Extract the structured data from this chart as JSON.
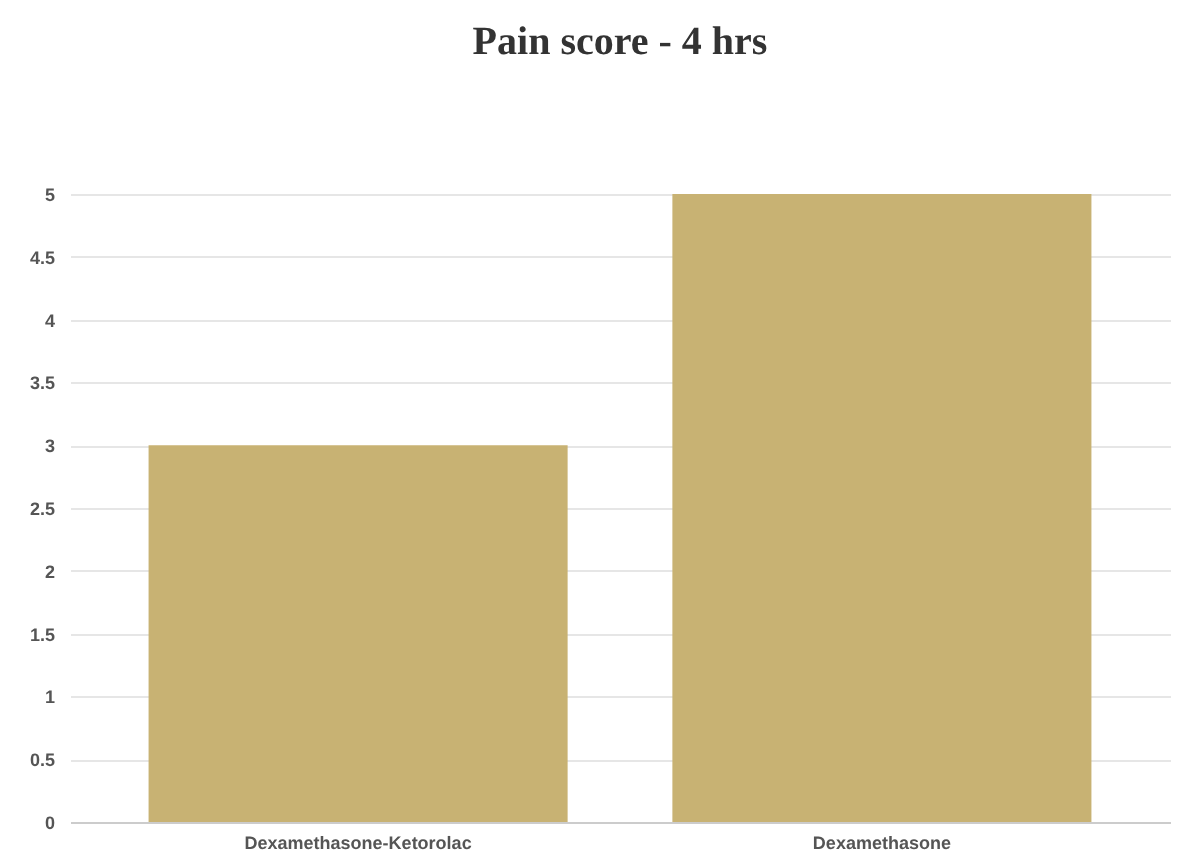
{
  "chart_data": {
    "type": "bar",
    "title": "Pain score - 4 hrs",
    "categories": [
      "Dexamethasone-Ketorolac",
      "Dexamethasone"
    ],
    "values": [
      3,
      5
    ],
    "color": "#c8b273",
    "ylim": [
      0,
      5
    ],
    "yticks": [
      0,
      0.5,
      1,
      1.5,
      2,
      2.5,
      3,
      3.5,
      4,
      4.5,
      5
    ],
    "grid": "y"
  }
}
